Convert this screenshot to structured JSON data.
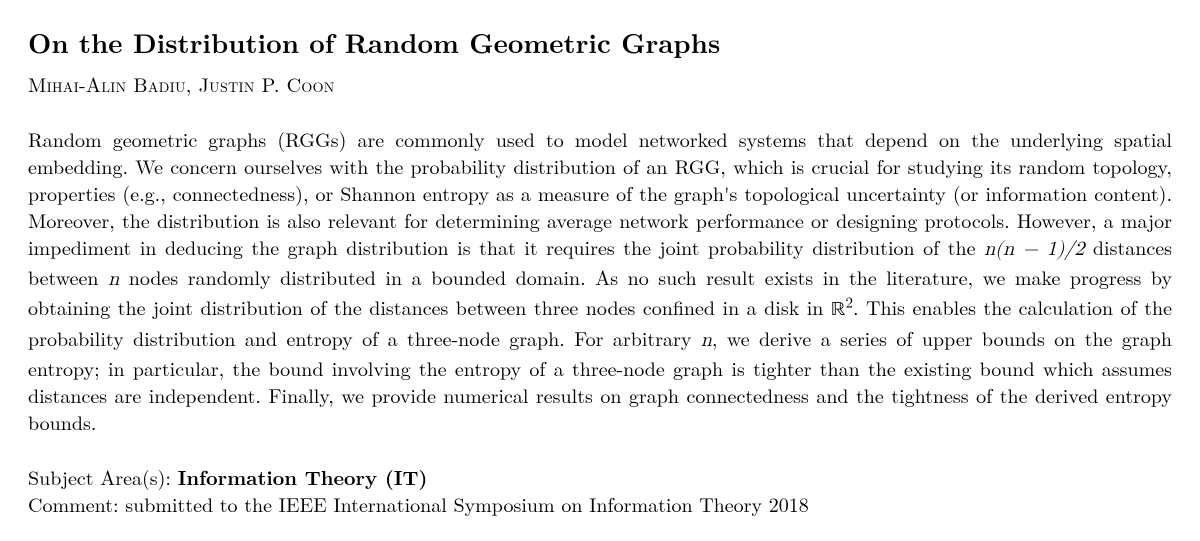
{
  "title": "On the Distribution of Random Geometric Graphs",
  "authors": "Mihai-Alin Badiu, Justin P. Coon",
  "abstract": {
    "p1a": "Random geometric graphs (RGGs) are commonly used to model networked systems that depend on the underlying spatial embedding. We concern ourselves with the probability distribution of an RGG, which is crucial for studying its random topology, properties (e.g., connectedness), or Shannon entropy as a measure of the graph's topological uncertainty (or information content). Moreover, the distribution is also relevant for determining average network performance or designing protocols. However, a major impediment in deducing the graph distribution is that it requires the joint probability distribution of the ",
    "formula1": "n(n − 1)/2",
    "p1b": " distances between ",
    "formula2": "n",
    "p1c": " nodes randomly distributed in a bounded domain. As no such result exists in the literature, we make progress by obtaining the joint distribution of the distances between three nodes confined in a disk in ",
    "formula3_base": "ℝ",
    "formula3_sup": "2",
    "p1d": ". This enables the calculation of the probability distribution and entropy of a three-node graph. For arbitrary ",
    "formula4": "n",
    "p1e": ", we derive a series of upper bounds on the graph entropy; in particular, the bound involving the entropy of a three-node graph is tighter than the existing bound which assumes distances are independent. Finally, we provide numerical results on graph connectedness and the tightness of the derived entropy bounds."
  },
  "subject_label": "Subject Area(s): ",
  "subject_value": "Information Theory (IT)",
  "comment_label": "Comment: ",
  "comment_value": "submitted to the IEEE International Symposium on Information Theory 2018"
}
